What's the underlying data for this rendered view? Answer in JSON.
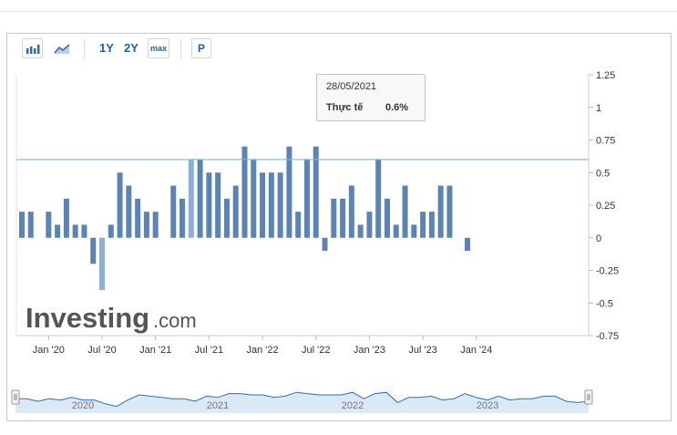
{
  "toolbar": {
    "range_1y": "1Y",
    "range_2y": "2Y",
    "range_max": "max",
    "p_button": "P",
    "icons": [
      "bar-chart-icon",
      "area-chart-icon"
    ]
  },
  "watermark": {
    "brand": "Investing",
    "suffix": ".com"
  },
  "tooltip": {
    "date": "28/05/2021",
    "label": "Thực tế",
    "value": "0.6%"
  },
  "colors": {
    "bar": "#5b84b4",
    "bar_highlight": "#8daed6",
    "reference_line": "#7ab8df",
    "navigator_fill": "#dbe8f6",
    "navigator_line": "#2a6fb6"
  },
  "chart_data": {
    "type": "bar",
    "title": "",
    "xlabel": "",
    "ylabel": "",
    "ylim": [
      -0.75,
      1.25
    ],
    "y_ticks": [
      "1.25",
      "1",
      "0.75",
      "0.5",
      "0.25",
      "0",
      "-0.25",
      "-0.5",
      "-0.75"
    ],
    "x_ticks": [
      "Jan '20",
      "Jul '20",
      "Jan '21",
      "Jul '21",
      "Jan '22",
      "Jul '22",
      "Jan '23",
      "Jul '23",
      "Jan '24"
    ],
    "reference_line": 0.6,
    "highlighted_date": "28/05/2021",
    "categories": [
      "2019-10",
      "2019-11",
      "2019-12",
      "2020-01",
      "2020-02",
      "2020-03",
      "2020-04",
      "2020-05",
      "2020-06",
      "2020-07",
      "2020-08",
      "2020-09",
      "2020-10",
      "2020-11",
      "2020-12",
      "2021-01",
      "2021-02",
      "2021-03",
      "2021-04",
      "2021-05",
      "2021-06",
      "2021-07",
      "2021-08",
      "2021-09",
      "2021-10",
      "2021-11",
      "2021-12",
      "2022-01",
      "2022-02",
      "2022-03",
      "2022-04",
      "2022-05",
      "2022-06",
      "2022-07",
      "2022-08",
      "2022-09",
      "2022-10",
      "2022-11",
      "2022-12",
      "2023-01",
      "2023-02",
      "2023-03",
      "2023-04",
      "2023-05",
      "2023-06",
      "2023-07",
      "2023-08",
      "2023-09",
      "2023-10",
      "2023-11",
      "2023-12",
      "2024-01"
    ],
    "values": [
      0.2,
      0.2,
      0,
      0.2,
      0.1,
      0.3,
      0.1,
      0.1,
      -0.2,
      -0.4,
      0.1,
      0.5,
      0.4,
      0.3,
      0.2,
      0.2,
      0,
      0.4,
      0.3,
      0.6,
      0.6,
      0.5,
      0.5,
      0.3,
      0.4,
      0.7,
      0.6,
      0.5,
      0.5,
      0.5,
      0.7,
      0.2,
      0.6,
      0.7,
      -0.1,
      0.3,
      0.3,
      0.4,
      0.1,
      0.2,
      0.6,
      0.3,
      0.1,
      0.4,
      0.1,
      0.2,
      0.2,
      0.4,
      0.4,
      0,
      -0.1,
      0
    ],
    "navigator_labels": [
      "2020",
      "2021",
      "2022",
      "2023"
    ]
  }
}
